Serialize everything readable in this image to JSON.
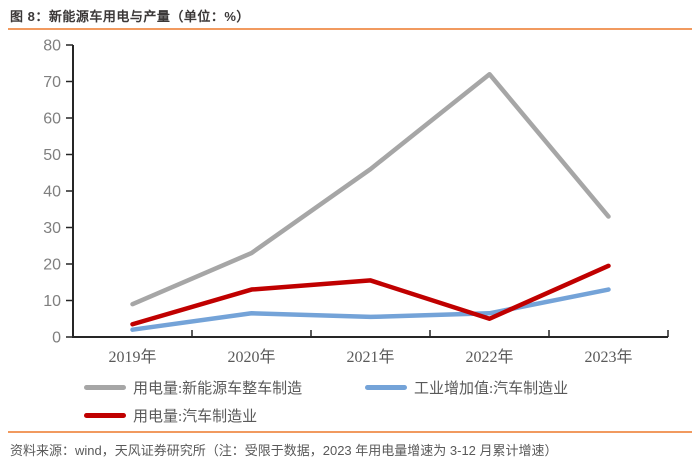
{
  "title": "图 8：新能源车用电与产量（单位：%）",
  "chart_data": {
    "type": "line",
    "categories": [
      "2019年",
      "2020年",
      "2021年",
      "2022年",
      "2023年"
    ],
    "series": [
      {
        "name": "用电量:新能源车整车制造",
        "color": "#a6a6a6",
        "values": [
          9,
          23,
          46,
          72,
          33
        ]
      },
      {
        "name": "工业增加值:汽车制造业",
        "color": "#74a3d8",
        "values": [
          2,
          6.5,
          5.5,
          6.5,
          13
        ]
      },
      {
        "name": "用电量:汽车制造业",
        "color": "#c00000",
        "values": [
          3.5,
          13,
          15.5,
          5,
          19.5
        ]
      }
    ],
    "ylim": [
      0,
      80
    ],
    "ytick_step": 10,
    "grid": false,
    "legend_position": "bottom"
  },
  "colors": {
    "axis": "#262626",
    "ytick_label": "#7f7f7f",
    "xtick_label": "#595959",
    "accent_rule": "#f19a5f",
    "title": "#3b3838",
    "footer": "#595959"
  },
  "footer": {
    "source_text": "资料来源：wind，天风证券研究所（注：受限于数据，2023 年用电量增速为 3-12 月累计增速）"
  }
}
